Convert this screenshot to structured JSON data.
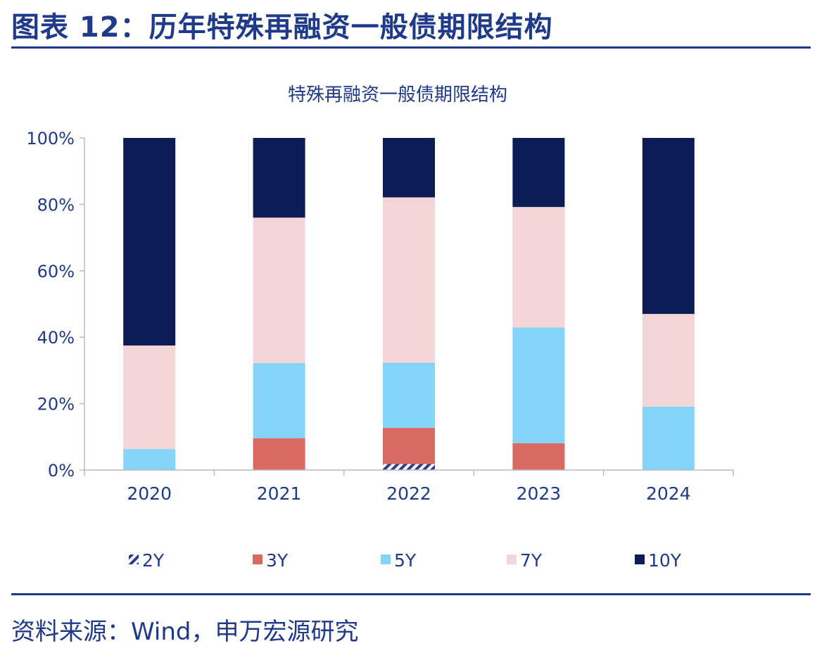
{
  "header": {
    "title": "图表 12：历年特殊再融资一般债期限结构"
  },
  "footer": {
    "source": "资料来源：Wind，申万宏源研究"
  },
  "colors": {
    "text": "#1f3a8a",
    "axis": "#b8bcc4",
    "2Y": "#2c3a8f",
    "3Y": "#d86a62",
    "5Y": "#83d4f8",
    "7Y": "#f4d6d8",
    "10Y": "#0c1c56"
  },
  "chart_data": {
    "type": "bar",
    "stacked": true,
    "percent": true,
    "title": "特殊再融资一般债期限结构",
    "xlabel": "",
    "ylabel": "",
    "ylim": [
      0,
      100
    ],
    "yticks": [
      "0%",
      "20%",
      "40%",
      "60%",
      "80%",
      "100%"
    ],
    "categories": [
      "2020",
      "2021",
      "2022",
      "2023",
      "2024"
    ],
    "legend_position": "bottom",
    "series": [
      {
        "name": "2Y",
        "key": "2Y",
        "values": [
          0,
          0,
          1.8,
          0,
          0
        ],
        "pattern": "hatch"
      },
      {
        "name": "3Y",
        "key": "3Y",
        "values": [
          0,
          9.6,
          10.9,
          8.1,
          0
        ]
      },
      {
        "name": "5Y",
        "key": "5Y",
        "values": [
          6.3,
          22.6,
          19.6,
          34.8,
          19.1
        ]
      },
      {
        "name": "7Y",
        "key": "7Y",
        "values": [
          31.2,
          43.8,
          49.8,
          36.3,
          27.9
        ]
      },
      {
        "name": "10Y",
        "key": "10Y",
        "values": [
          62.5,
          24.0,
          17.9,
          20.8,
          53.0
        ]
      }
    ]
  }
}
